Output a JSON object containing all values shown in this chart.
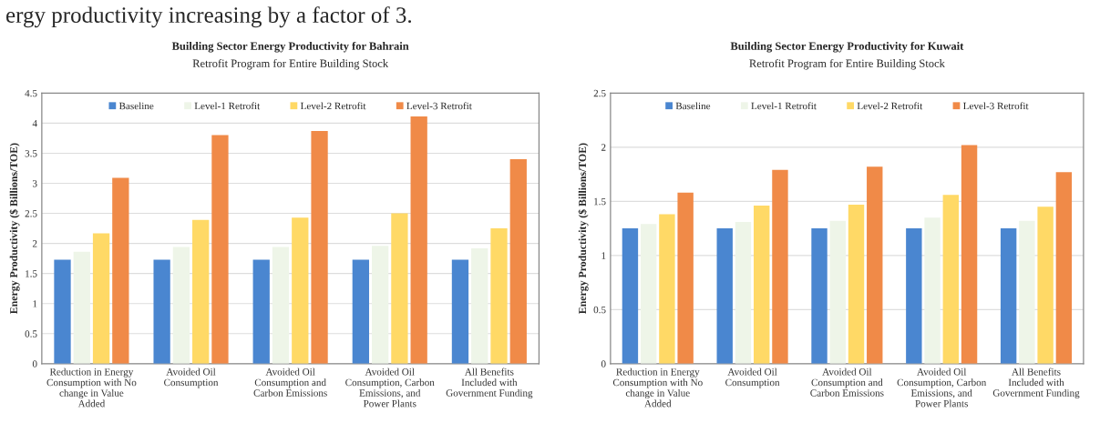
{
  "chart_data": [
    {
      "type": "bar",
      "title": "Building Sector Energy Productivity for Bahrain",
      "subtitle": "Retrofit Program for Entire Building Stock",
      "ylabel": "Energy Productivity ($ Billions/TOE)",
      "annotations": [
        "ergy productivity increasing by a factor of 3."
      ],
      "categories": [
        "Reduction in Energy Consumption with No change in Value Added",
        "Avoided Oil Consumption",
        "Avoided Oil Consumption and Carbon Emissions",
        "Avoided Oil Consumption, Carbon Emissions, and Power Plants",
        "All Benefits Included with Government Funding"
      ],
      "series": [
        {
          "name": "Baseline",
          "color": "#4a86d0",
          "values": [
            1.73,
            1.73,
            1.73,
            1.73,
            1.73
          ]
        },
        {
          "name": "Level-1 Retrofit",
          "color": "#eef5e8",
          "values": [
            1.86,
            1.94,
            1.94,
            1.96,
            1.92
          ]
        },
        {
          "name": "Level-2 Retrofit",
          "color": "#ffd966",
          "values": [
            2.17,
            2.39,
            2.43,
            2.5,
            2.25
          ]
        },
        {
          "name": "Level-3 Retrofit",
          "color": "#f08a48",
          "values": [
            3.09,
            3.8,
            3.87,
            4.11,
            3.4
          ]
        }
      ],
      "ylim": [
        0,
        4.5
      ],
      "yticks": [
        0,
        0.5,
        1,
        1.5,
        2,
        2.5,
        3,
        3.5,
        4,
        4.5
      ],
      "grid": "y",
      "legend": "top"
    },
    {
      "type": "bar",
      "title": "Building Sector Energy Productivity for Kuwait",
      "subtitle": "Retrofit Program for Entire Building Stock",
      "ylabel": "Energy Productivity ($ Billions/TOE)",
      "categories": [
        "Reduction in Energy Consumption with No change in Value Added",
        "Avoided Oil Consumption",
        "Avoided Oil Consumption and Carbon Emissions",
        "Avoided Oil Consumption, Carbon Emissions, and Power Plants",
        "All Benefits Included with Government Funding"
      ],
      "series": [
        {
          "name": "Baseline",
          "color": "#4a86d0",
          "values": [
            1.25,
            1.25,
            1.25,
            1.25,
            1.25
          ]
        },
        {
          "name": "Level-1 Retrofit",
          "color": "#eef5e8",
          "values": [
            1.29,
            1.31,
            1.32,
            1.35,
            1.32
          ]
        },
        {
          "name": "Level-2 Retrofit",
          "color": "#ffd966",
          "values": [
            1.38,
            1.46,
            1.47,
            1.56,
            1.45
          ]
        },
        {
          "name": "Level-3 Retrofit",
          "color": "#f08a48",
          "values": [
            1.58,
            1.79,
            1.82,
            2.02,
            1.77
          ]
        }
      ],
      "ylim": [
        0,
        2.5
      ],
      "yticks": [
        0,
        0.5,
        1,
        1.5,
        2,
        2.5
      ],
      "grid": "y",
      "legend": "top"
    }
  ]
}
